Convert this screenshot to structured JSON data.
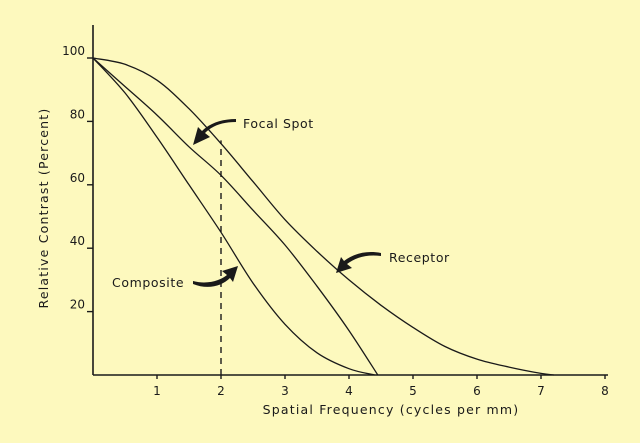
{
  "chart_data": {
    "type": "line",
    "title": "",
    "xlabel": "Spatial Frequency (cycles per mm)",
    "ylabel": "Relative Contrast (Percent)",
    "xlim": [
      0,
      8
    ],
    "ylim": [
      0,
      100
    ],
    "x_ticks": [
      1,
      2,
      3,
      4,
      5,
      6,
      7,
      8
    ],
    "y_ticks": [
      20,
      40,
      60,
      80,
      100
    ],
    "grid": false,
    "series": [
      {
        "name": "Receptor",
        "x": [
          0,
          0.5,
          1,
          1.5,
          2,
          2.5,
          3,
          3.5,
          4,
          4.5,
          5,
          5.5,
          6,
          6.5,
          7,
          7.2
        ],
        "y": [
          100,
          98,
          93,
          84,
          73,
          61,
          49,
          39,
          30,
          22,
          15,
          9,
          5,
          2.5,
          0.5,
          0
        ]
      },
      {
        "name": "Focal Spot",
        "x": [
          0,
          0.5,
          1,
          1.5,
          2,
          2.5,
          3,
          3.5,
          4,
          4.45
        ],
        "y": [
          100,
          91,
          82,
          72,
          63,
          52,
          41,
          28,
          14,
          0
        ]
      },
      {
        "name": "Composite",
        "x": [
          0,
          0.5,
          1,
          1.5,
          2,
          2.5,
          3,
          3.5,
          4,
          4.4
        ],
        "y": [
          100,
          89,
          75,
          60,
          45,
          29,
          16,
          7,
          2,
          0
        ]
      }
    ],
    "reference_line": {
      "x": 2,
      "style": "dashed"
    },
    "annotations": [
      {
        "text": "Focal Spot",
        "points_to": "Focal Spot"
      },
      {
        "text": "Receptor",
        "points_to": "Receptor"
      },
      {
        "text": "Composite",
        "points_to": "Composite"
      }
    ]
  }
}
